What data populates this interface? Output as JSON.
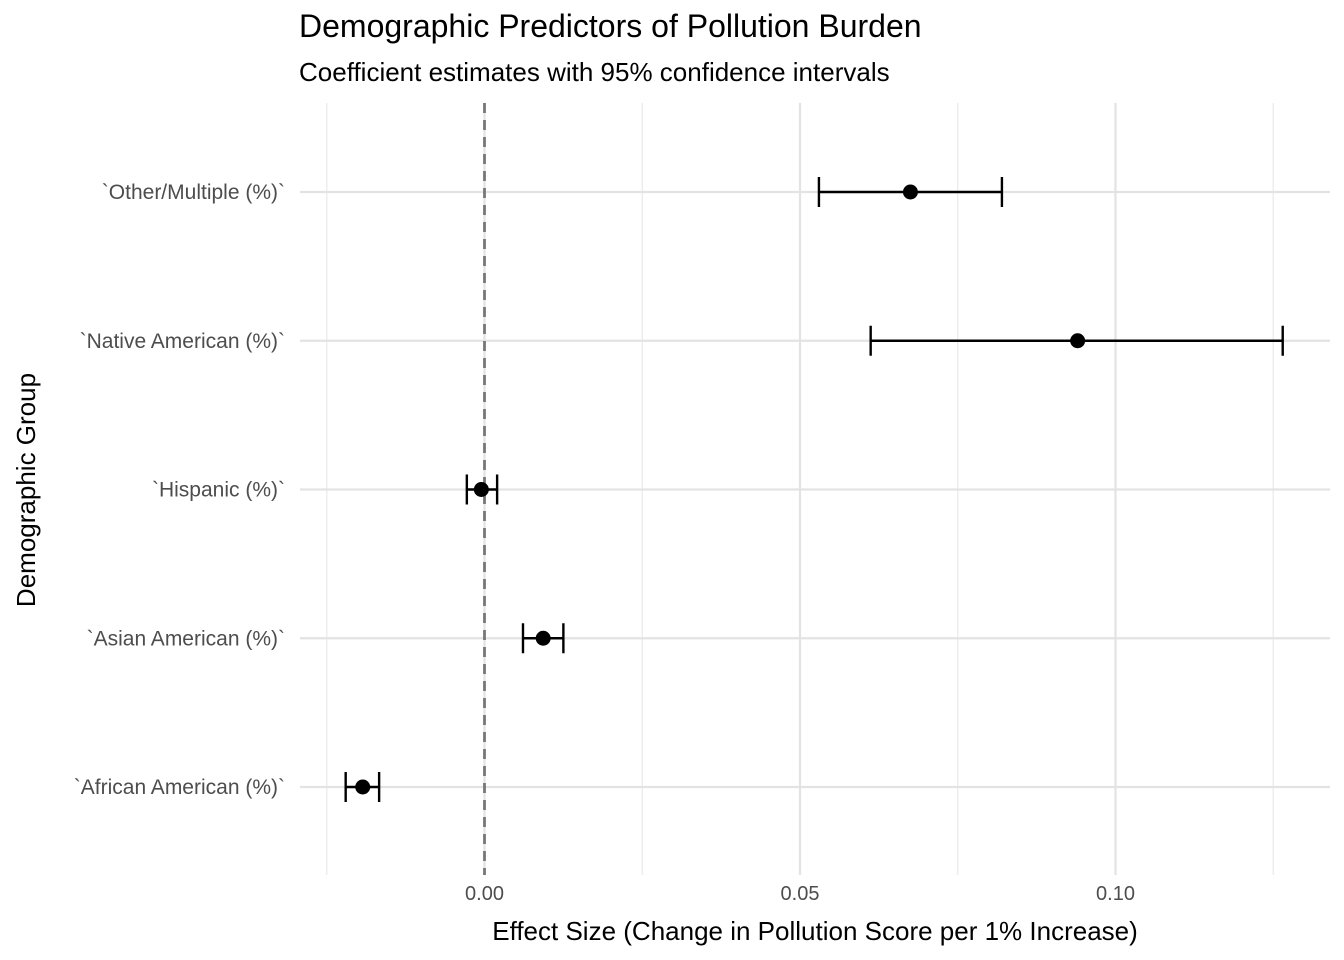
{
  "chart_data": {
    "type": "scatter",
    "subtype": "coefficient-plot-with-error-bars",
    "title": "Demographic Predictors of Pollution Burden",
    "subtitle": "Coefficient estimates with 95% confidence intervals",
    "xlabel": "Effect Size (Change in Pollution Score per 1% Increase)",
    "ylabel": "Demographic Group",
    "xlim": [
      -0.025,
      0.1275
    ],
    "x_ticks": [
      0.0,
      0.05,
      0.1
    ],
    "x_tick_labels": [
      "0.00",
      "0.05",
      "0.10"
    ],
    "reference_line": {
      "x": 0,
      "style": "dashed",
      "color": "#777777"
    },
    "grid": true,
    "categories": [
      "`Other/Multiple (%)`",
      "`Native American (%)`",
      "`Hispanic (%)`",
      "`Asian American (%)`",
      "`African American (%)`"
    ],
    "estimates": [
      0.0675,
      0.094,
      -0.0005,
      0.0093,
      -0.0193
    ],
    "ci_low": [
      0.053,
      0.0612,
      -0.0028,
      0.0061,
      -0.022
    ],
    "ci_high": [
      0.082,
      0.1265,
      0.002,
      0.0125,
      -0.0167
    ]
  }
}
